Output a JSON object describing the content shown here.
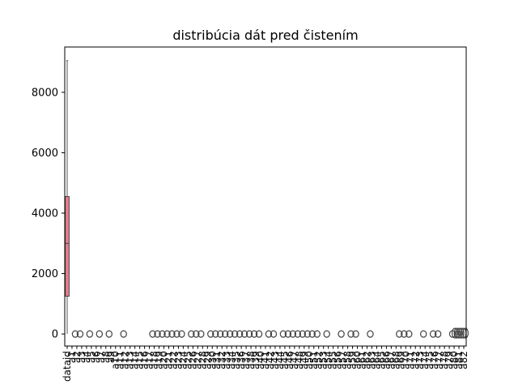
{
  "chart_data": {
    "type": "box",
    "title": "distribúcia dát pred čistením",
    "xlabel": "",
    "ylabel": "",
    "ylim": [
      -400,
      9500
    ],
    "yticks": [
      0,
      2000,
      4000,
      6000,
      8000
    ],
    "ytick_labels": [
      "0",
      "2000",
      "4000",
      "6000",
      "8000"
    ],
    "grid": false,
    "legend": "none",
    "categories": [
      "dataid",
      "a1",
      "a2",
      "a3",
      "a4",
      "a5",
      "a6",
      "a7",
      "a8",
      "a9",
      "a10",
      "a11",
      "a12",
      "a13",
      "a14",
      "a15",
      "a16",
      "a17",
      "a18",
      "a19",
      "a20",
      "a21",
      "a22",
      "a23",
      "a24",
      "a25",
      "a26",
      "a27",
      "a28",
      "a29",
      "a30",
      "a31",
      "a32",
      "a33",
      "a34",
      "a35",
      "a36",
      "a37",
      "a38",
      "a39",
      "a40",
      "a41",
      "a42",
      "a43",
      "a44",
      "a45",
      "a46",
      "a47",
      "a48",
      "a49",
      "a50",
      "a51",
      "a52",
      "a53",
      "a54",
      "a55",
      "a56",
      "a57",
      "a58",
      "a59",
      "a60",
      "a61",
      "a62",
      "a63",
      "a64",
      "a65",
      "a66",
      "a67",
      "a68",
      "a69",
      "a70",
      "a71",
      "a72",
      "a73",
      "a74",
      "a75",
      "a76",
      "a77",
      "a78",
      "a79",
      "a80",
      "a81",
      "a82",
      "a83",
      "a84",
      "a85",
      "a86",
      "a87",
      "a88",
      "a89",
      "a90",
      "a91",
      "a92",
      "a93",
      "a94",
      "a95",
      "a96",
      "a97",
      "a98",
      "a99",
      "a100",
      "a101",
      "a102",
      "a103",
      "a104",
      "a105",
      "a106",
      "a107",
      "a108",
      "a109",
      "a110",
      "a111",
      "a112",
      "a113",
      "a114",
      "a115",
      "a116",
      "a117",
      "grid",
      "a119",
      "a120",
      "a121",
      "a122",
      "a123",
      "a124",
      "a125",
      "a126",
      "a127",
      "a128",
      "a129",
      "a130",
      "a131",
      "a132",
      "a133",
      "a134",
      "a135",
      "a136",
      "a137",
      "a138",
      "a139",
      "a140",
      "a141",
      "a142",
      "a143",
      "a144",
      "a145",
      "a146",
      "a147",
      "a148",
      "a149",
      "a150",
      "a151",
      "a152",
      "a153",
      "a154",
      "a155",
      "a156",
      "a157",
      "a158",
      "a159",
      "a160",
      "a161",
      "a162",
      "a163",
      "a164",
      "a165",
      "a166",
      "a167",
      "a168",
      "a169",
      "a170",
      "a171",
      "a172",
      "a173",
      "a174",
      "a175",
      "a176",
      "a177",
      "a178",
      "a179",
      "a180",
      "a181",
      "a182",
      "a183",
      "a184",
      "a185",
      "a186",
      "a187",
      "a188",
      "a189",
      "a190",
      "a191",
      "a192",
      "a193",
      "a194",
      "a195",
      "a196",
      "a197",
      "a198",
      "a199",
      "a200",
      "a201",
      "a202",
      "a203",
      "a204",
      "a205",
      "a206",
      "a207",
      "a208",
      "a209",
      "a210",
      "a211",
      "a212",
      "a213",
      "a214",
      "a215",
      "a216",
      "a217",
      "a218",
      "a219",
      "a220",
      "a221",
      "a222",
      "a223",
      "a224",
      "a225",
      "a226",
      "a227",
      "a228",
      "a229",
      "a230",
      "a231",
      "a232",
      "a233",
      "a234",
      "a235",
      "a236",
      "a237",
      "a238",
      "a239",
      "a240",
      "a241",
      "a242",
      "a243",
      "a244",
      "a245",
      "a246",
      "a247",
      "a248",
      "a249",
      "a250",
      "a251",
      "a252",
      "a253",
      "a254",
      "a255",
      "a256",
      "a257",
      "a258",
      "a259",
      "a260",
      "a261",
      "a262",
      "a263",
      "a264",
      "a265",
      "a266",
      "a267",
      "a268",
      "a269",
      "a270",
      "a271",
      "a272",
      "a273",
      "a274",
      "a275",
      "a276",
      "a277",
      "a278",
      "a279",
      "a280",
      "a281",
      "a282",
      "a283",
      "a284",
      "a285",
      "a286",
      "a287",
      "a288",
      "a289",
      "a290",
      "a291",
      "a292",
      "a293",
      "a294",
      "a295",
      "a296",
      "a297",
      "a298",
      "a299",
      "a300",
      "a301",
      "a302",
      "a303",
      "a304",
      "a305",
      "a306",
      "a307",
      "a308",
      "a309",
      "a310",
      "a311",
      "a312",
      "a313",
      "a314",
      "a315",
      "a316",
      "a317",
      "a318",
      "a319",
      "a320",
      "a321",
      "a322",
      "a323",
      "a324",
      "a325",
      "a326",
      "a327",
      "a328",
      "a329",
      "a330",
      "a331",
      "a332",
      "a333",
      "a334",
      "a335",
      "a336",
      "a337",
      "a338",
      "a339",
      "a340",
      "a341",
      "a342",
      "a343",
      "a344",
      "a345",
      "a346",
      "a347",
      "a348",
      "a349",
      "a350",
      "a351",
      "a352",
      "a353",
      "a354",
      "a355",
      "a356",
      "a357",
      "a358",
      "a359",
      "a360",
      "a361",
      "a362",
      "a363",
      "a364",
      "a365",
      "a366",
      "a367",
      "a368",
      "a369",
      "a370",
      "a371",
      "a372",
      "a373",
      "a374",
      "a375",
      "a376",
      "a377",
      "a378",
      "a379",
      "a380",
      "a381",
      "a382",
      "a383",
      "a384",
      "a385",
      "a386",
      "a387",
      "a388",
      "a389",
      "a390",
      "a391",
      "a392",
      "a393",
      "a394",
      "a395",
      "a396",
      "a397",
      "a398",
      "a399",
      "a400",
      "a401",
      "a402",
      "a403",
      "a404",
      "a405",
      "a406",
      "a407",
      "a408",
      "a409",
      "a410",
      "a411",
      "a412",
      "a413",
      "a414",
      "a415",
      "a416",
      "a417",
      "a418",
      "a419",
      "a420",
      "a421",
      "a422",
      "a423",
      "a424",
      "a425",
      "a426",
      "a427",
      "a428",
      "a429",
      "a430",
      "a431",
      "a432",
      "a433",
      "a434",
      "a435",
      "a436",
      "a437",
      "a438",
      "a439",
      "a440",
      "a441",
      "a442",
      "a443",
      "a444",
      "a445",
      "a446",
      "a447",
      "a448",
      "a449",
      "a450",
      "a451",
      "a452",
      "a453",
      "a454",
      "a455",
      "a456",
      "a457",
      "a458",
      "a459",
      "a460",
      "a461",
      "a462",
      "a463",
      "a464",
      "a465",
      "a466",
      "a467",
      "a468",
      "a469",
      "a470",
      "a471",
      "a472",
      "a473",
      "a474",
      "a475",
      "a476",
      "a477",
      "a478",
      "a479",
      "a480",
      "a481",
      "a482",
      "a483",
      "a484",
      "a485",
      "a486",
      "a487",
      "a488",
      "a489",
      "a490",
      "a491",
      "a492",
      "a493",
      "a494",
      "a495",
      "a496",
      "a497",
      "a498",
      "a499",
      "a500",
      "a501",
      "a502",
      "a503",
      "a504",
      "a505",
      "a506",
      "a507",
      "a508",
      "a509",
      "a510",
      "a511",
      "a512",
      "a513",
      "a514",
      "a515",
      "a516",
      "a517",
      "a518",
      "a519",
      "a520",
      "a521",
      "a522",
      "a523",
      "a524",
      "a525",
      "a526",
      "a527",
      "a528",
      "a529",
      "a530",
      "a531",
      "a532",
      "a533",
      "a534",
      "a535",
      "a536",
      "a537",
      "a538",
      "a539",
      "a540",
      "a541",
      "a542",
      "a543",
      "a544",
      "a545",
      "a546",
      "a547",
      "a548",
      "a549",
      "a550",
      "a551",
      "a552",
      "a553",
      "a554",
      "a555",
      "a556",
      "a557",
      "a558",
      "a559",
      "a560",
      "a561",
      "a562",
      "a563",
      "a564",
      "a565",
      "a566",
      "a567",
      "a568",
      "a569",
      "a570",
      "a571",
      "a572",
      "a573",
      "a574",
      "a575",
      "a576",
      "a577",
      "a578",
      "a579",
      "a580",
      "a581",
      "a582",
      "a583",
      "a584",
      "a585",
      "a586",
      "a587",
      "a588",
      "a589",
      "a590",
      "a591",
      "a592",
      "a593",
      "a594",
      "a595",
      "a596",
      "a597",
      "a598",
      "a599",
      "a600",
      "a601",
      "a602",
      "a603",
      "a604",
      "a605",
      "a606",
      "a607",
      "a608",
      "a609",
      "a610",
      "a611",
      "a612",
      "a613",
      "a614",
      "a615",
      "a616",
      "a617",
      "a618",
      "a619",
      "a620",
      "a621",
      "a622",
      "a623",
      "a624",
      "a625",
      "a626",
      "a627",
      "a628",
      "a629",
      "a630",
      "a631",
      "a632",
      "a633",
      "a634",
      "a635",
      "a636",
      "a637",
      "a638",
      "a639",
      "a640",
      "a641",
      "a642",
      "a643",
      "a644",
      "a645",
      "a646",
      "a647",
      "a648",
      "a649",
      "a650",
      "a651",
      "a652",
      "a653",
      "a654",
      "a655",
      "a656",
      "a657",
      "a658",
      "a659",
      "a660",
      "a661",
      "a662",
      "a663",
      "a664",
      "a665",
      "a666",
      "a667",
      "a668",
      "a669",
      "a670",
      "a671",
      "a672",
      "a673",
      "a674",
      "a675",
      "a676",
      "a677",
      "a678",
      "a679",
      "a680",
      "a681",
      "a682",
      "a683",
      "a684",
      "a685",
      "a686",
      "a687",
      "a688",
      "a689",
      "a690",
      "a691",
      "a692",
      "a693",
      "a694",
      "a695",
      "a696",
      "a697",
      "a698",
      "a699",
      "a700",
      "a701",
      "a702",
      "a703",
      "a704",
      "a705",
      "a706",
      "a707",
      "a708",
      "a709",
      "a710",
      "a711",
      "a712",
      "a713",
      "a714",
      "a715",
      "a716",
      "a717",
      "a718",
      "a719",
      "a720",
      "a721",
      "a722",
      "a723",
      "a724",
      "a725",
      "a726",
      "a727",
      "a728",
      "a729",
      "a730",
      "a731",
      "a732",
      "a733",
      "a734",
      "a735",
      "a736",
      "a737",
      "a738",
      "a739",
      "a740",
      "a741",
      "a742",
      "a743",
      "a744",
      "a745",
      "a746",
      "a747",
      "a748",
      "a749",
      "a750",
      "a751",
      "a752",
      "a753",
      "a754",
      "a755",
      "a756",
      "a757",
      "a758",
      "a759",
      "a760",
      "a761",
      "a762",
      "a763",
      "a764",
      "a765",
      "a766",
      "a767",
      "a768",
      "a769",
      "a770",
      "a771",
      "a772",
      "a773",
      "a774",
      "a775",
      "a776",
      "a777",
      "a778",
      "a779",
      "a780",
      "a781",
      "a782",
      "a783",
      "a784",
      "a785",
      "a786",
      "a787",
      "a788",
      "a789",
      "a790",
      "a791",
      "a792",
      "a793",
      "a794",
      "a795",
      "a796",
      "a797",
      "a798",
      "a799",
      "a800",
      "a801",
      "a802",
      "a803",
      "a804",
      "a805",
      "a806",
      "a807",
      "a808",
      "a809",
      "a810",
      "a811",
      "a812",
      "a813",
      "a814",
      "a815",
      "a816",
      "a817",
      "a818",
      "a819",
      "a820",
      "a821",
      "a822",
      "a823",
      "a824",
      "a825",
      "a826",
      "a827",
      "a828",
      "a829",
      "a830",
      "a831",
      "a832",
      "a833",
      "a834",
      "a835",
      "a836",
      "a837",
      "a838",
      "a839",
      "a840",
      "a841",
      "a842",
      "a843",
      "a844",
      "a845",
      "a846",
      "a847",
      "a848",
      "a849",
      "a850",
      "a851",
      "a852",
      "a853",
      "a854",
      "a855",
      "a856",
      "a857",
      "a858",
      "a859",
      "a860",
      "a861",
      "a862",
      "a863",
      "a864",
      "a865",
      "a866",
      "a867",
      "a868",
      "a869",
      "a870",
      "a871",
      "a872",
      "a873",
      "a874",
      "a875",
      "a876",
      "a877",
      "a878",
      "a879",
      "a880",
      "a881",
      "a882",
      "a883",
      "a884",
      "a885",
      "a886",
      "a887",
      "a888",
      "a889",
      "a890",
      "a891",
      "a892",
      "a893",
      "a894",
      "a895",
      "a896",
      "a897",
      "a898",
      "a899",
      "a900",
      "a901",
      "a902",
      "a903",
      "a904",
      "a905",
      "a906",
      "a907",
      "a908",
      "a909",
      "a910",
      "a911",
      "a912",
      "a913",
      "a914",
      "a915",
      "a916",
      "a917",
      "a918",
      "a919",
      "a920",
      "a921",
      "a922",
      "a923",
      "a924",
      "a925",
      "a926",
      "a927",
      "a928",
      "a929",
      "a930",
      "a931",
      "a932",
      "a933",
      "a934",
      "a935",
      "a936",
      "a937",
      "a938",
      "a939",
      "a940",
      "a941",
      "a942",
      "a943",
      "a944",
      "a945",
      "a946",
      "a947",
      "a948",
      "a949",
      "a950",
      "a951",
      "a952",
      "a953",
      "a954",
      "a955",
      "a956",
      "a957",
      "a958",
      "a959",
      "a960",
      "a961",
      "a962",
      "a963",
      "a964",
      "a965",
      "a966",
      "a967",
      "a968",
      "a969",
      "a970",
      "a971",
      "a972",
      "a973",
      "a974",
      "a975",
      "a976",
      "a977",
      "a978",
      "a979",
      "a980",
      "a981",
      "a982",
      "a983",
      "a984",
      "a985",
      "a986",
      "a987",
      "a988",
      "a989",
      "a990",
      "a991",
      "a992",
      "a993",
      "a994",
      "a995",
      "a996",
      "a997",
      "a998",
      "a999"
    ],
    "boxes": [
      {
        "name": "dataid",
        "whisker_low": 0,
        "q1": 1250,
        "median": 3000,
        "q3": 4550,
        "whisker_high": 9050,
        "color": "#e87d8c"
      }
    ],
    "outlier_value": 0,
    "outlier_categories_note": ""
  }
}
